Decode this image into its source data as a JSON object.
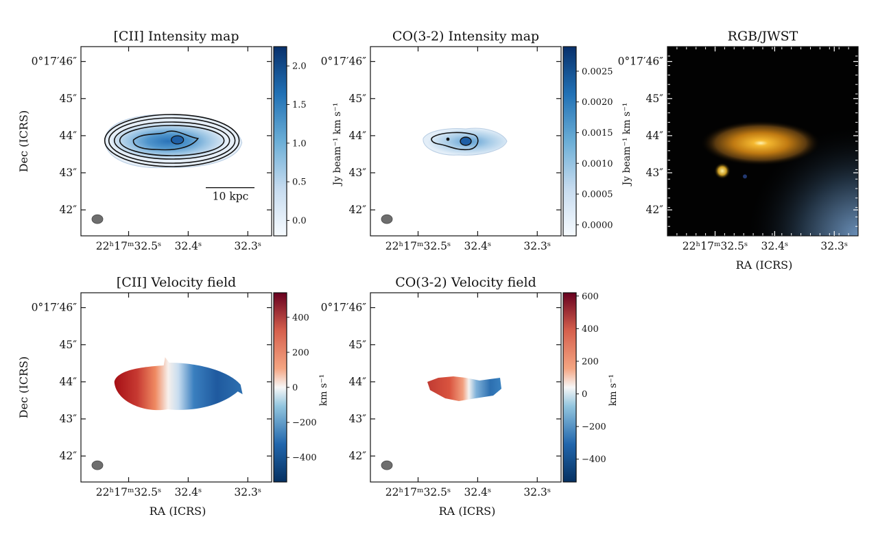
{
  "figure": {
    "panels": [
      {
        "id": "cii-intensity",
        "title": "[CII] Intensity map",
        "kind": "intensity",
        "show_ylabel": true,
        "show_xlabel": false,
        "colorbar": {
          "cmap": "blues",
          "label": "Jy beam⁻¹ km s⁻¹",
          "ticks": [
            "0.0",
            "0.5",
            "1.0",
            "1.5",
            "2.0"
          ],
          "tick_values": [
            0.0,
            0.5,
            1.0,
            1.5,
            2.0
          ],
          "range": [
            -0.2,
            2.25
          ]
        },
        "scalebar_label": "10 kpc"
      },
      {
        "id": "co-intensity",
        "title": "CO(3-2) Intensity map",
        "kind": "intensity",
        "show_ylabel": false,
        "show_xlabel": false,
        "colorbar": {
          "cmap": "blues",
          "label": "Jy beam⁻¹ km s⁻¹",
          "ticks": [
            "0.0000",
            "0.0005",
            "0.0010",
            "0.0015",
            "0.0020",
            "0.0025"
          ],
          "tick_values": [
            0.0,
            0.0005,
            0.001,
            0.0015,
            0.002,
            0.0025
          ],
          "range": [
            -0.00018,
            0.0029
          ]
        }
      },
      {
        "id": "rgb-jwst",
        "title": "RGB/JWST",
        "kind": "rgb",
        "show_ylabel": false,
        "show_xlabel": true
      },
      {
        "id": "cii-velocity",
        "title": "[CII] Velocity field",
        "kind": "velocity",
        "show_ylabel": true,
        "show_xlabel": true,
        "colorbar": {
          "cmap": "rdbu",
          "label": "km s⁻¹",
          "ticks": [
            "−400",
            "−200",
            "0",
            "200",
            "400"
          ],
          "tick_values": [
            -400,
            -200,
            0,
            200,
            400
          ],
          "range": [
            -540,
            540
          ]
        }
      },
      {
        "id": "co-velocity",
        "title": "CO(3-2) Velocity field",
        "kind": "velocity",
        "show_ylabel": false,
        "show_xlabel": true,
        "colorbar": {
          "cmap": "rdbu",
          "label": "km s⁻¹",
          "ticks": [
            "−400",
            "−200",
            "0",
            "200",
            "400",
            "600"
          ],
          "tick_values": [
            -400,
            -200,
            0,
            200,
            400,
            600
          ],
          "range": [
            -540,
            620
          ]
        }
      }
    ],
    "axes": {
      "ytick_labels": [
        "0°17′46″",
        "45″",
        "44″",
        "43″",
        "42″"
      ],
      "ytick_values_arcsec": [
        46,
        45,
        44,
        43,
        42
      ],
      "ylim_arcsec": [
        41.3,
        46.4
      ],
      "xtick_labels": [
        "22ʰ17ᵐ32.5ˢ",
        "32.4ˢ",
        "32.3ˢ"
      ],
      "xtick_values_sec": [
        32.5,
        32.4,
        32.3
      ],
      "xlim_sec": [
        32.58,
        32.26
      ],
      "xlabel": "RA (ICRS)",
      "ylabel": "Dec (ICRS)"
    }
  },
  "chart_data": [
    {
      "type": "heatmap",
      "title": "[CII] Intensity map",
      "xlabel": "",
      "ylabel": "Dec (ICRS)",
      "colorbar_label": "Jy beam⁻¹ km s⁻¹",
      "colorbar_range": [
        -0.2,
        2.25
      ],
      "peak_value": 2.2,
      "annotation": "10 kpc"
    },
    {
      "type": "heatmap",
      "title": "CO(3-2) Intensity map",
      "xlabel": "",
      "ylabel": "",
      "colorbar_label": "Jy beam⁻¹ km s⁻¹",
      "colorbar_range": [
        -0.00018,
        0.0029
      ],
      "peak_value": 0.0027
    },
    {
      "type": "heatmap",
      "title": "RGB/JWST",
      "xlabel": "RA (ICRS)",
      "ylabel": ""
    },
    {
      "type": "heatmap",
      "title": "[CII] Velocity field",
      "xlabel": "RA (ICRS)",
      "ylabel": "Dec (ICRS)",
      "colorbar_label": "km s⁻¹",
      "colorbar_range": [
        -540,
        540
      ],
      "velocity_range_shown": [
        -450,
        450
      ]
    },
    {
      "type": "heatmap",
      "title": "CO(3-2) Velocity field",
      "xlabel": "RA (ICRS)",
      "ylabel": "",
      "colorbar_label": "km s⁻¹",
      "colorbar_range": [
        -540,
        620
      ],
      "velocity_range_shown": [
        -400,
        400
      ]
    }
  ]
}
